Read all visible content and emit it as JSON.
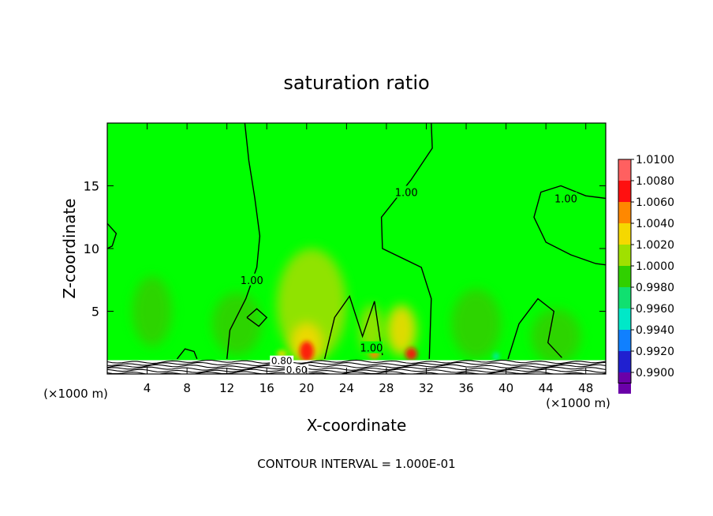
{
  "chart_data": {
    "type": "heatmap",
    "title": "saturation ratio",
    "xlabel": "X-coordinate",
    "ylabel": "Z-coordinate",
    "x_unit_left": "(×1000 m)",
    "x_unit_right": "(×1000 m)",
    "xlim": [
      0,
      50
    ],
    "ylim": [
      0,
      20
    ],
    "x_ticks": [
      4,
      8,
      12,
      16,
      20,
      24,
      28,
      32,
      36,
      40,
      44,
      48
    ],
    "x_tick_labels": [
      "4",
      "8",
      "12",
      "16",
      "20",
      "24",
      "28",
      "32",
      "36",
      "40",
      "44",
      "48"
    ],
    "y_ticks": [
      5,
      10,
      15
    ],
    "y_tick_labels": [
      "5",
      "10",
      "15"
    ],
    "footer": "CONTOUR INTERVAL = 1.000E-01",
    "colorbar": {
      "min": 0.99,
      "max": 1.01,
      "labels": [
        "1.0100",
        "1.0080",
        "1.0060",
        "1.0040",
        "1.0020",
        "1.0000",
        "0.9980",
        "0.9960",
        "0.9940",
        "0.9920",
        "0.9900"
      ],
      "levels": [
        1.009,
        1.007,
        1.005,
        1.003,
        1.001,
        0.999,
        0.997,
        0.995,
        0.993,
        0.991
      ],
      "colors": [
        "#ff6060",
        "#ff1010",
        "#ff8800",
        "#f5d800",
        "#a0e000",
        "#30d000",
        "#10e070",
        "#00e8c8",
        "#1080ff",
        "#2020d0",
        "#6a00a8"
      ]
    },
    "background_color": "#00ff00",
    "features": [
      {
        "kind": "cell",
        "x": 4.5,
        "z": 5.0,
        "value": 0.9988,
        "sx": 2.0,
        "sz": 2.8
      },
      {
        "kind": "cell",
        "x": 13.0,
        "z": 4.0,
        "value": 0.9993,
        "sx": 2.5,
        "sz": 2.5
      },
      {
        "kind": "cell",
        "x": 20.5,
        "z": 5.5,
        "value": 1.0013,
        "sx": 3.5,
        "sz": 4.5
      },
      {
        "kind": "cell",
        "x": 20.0,
        "z": 2.5,
        "value": 1.0032,
        "sx": 1.6,
        "sz": 1.6
      },
      {
        "kind": "cell",
        "x": 20.0,
        "z": 1.8,
        "value": 1.0066,
        "sx": 0.7,
        "sz": 0.8
      },
      {
        "kind": "cell",
        "x": 26.5,
        "z": 3.5,
        "value": 1.0018,
        "sx": 1.2,
        "sz": 2.0
      },
      {
        "kind": "cell",
        "x": 26.8,
        "z": 1.6,
        "value": 1.0055,
        "sx": 0.5,
        "sz": 0.4
      },
      {
        "kind": "cell",
        "x": 29.5,
        "z": 3.5,
        "value": 1.0028,
        "sx": 1.5,
        "sz": 2.0
      },
      {
        "kind": "cell",
        "x": 30.5,
        "z": 1.6,
        "value": 1.0062,
        "sx": 0.6,
        "sz": 0.5
      },
      {
        "kind": "cell",
        "x": 37.0,
        "z": 4.0,
        "value": 0.9984,
        "sx": 2.5,
        "sz": 2.8
      },
      {
        "kind": "cell",
        "x": 45.0,
        "z": 3.0,
        "value": 0.9992,
        "sx": 2.5,
        "sz": 2.2
      },
      {
        "kind": "cell",
        "x": 39.0,
        "z": 1.4,
        "value": 0.9942,
        "sx": 0.3,
        "sz": 0.3
      },
      {
        "kind": "cell",
        "x": 17.5,
        "z": 1.6,
        "value": 1.0035,
        "sx": 0.5,
        "sz": 0.3
      }
    ],
    "contours": [
      {
        "label": "1.00",
        "label_at": [
          14.5,
          7.5
        ],
        "points": [
          [
            13.8,
            20
          ],
          [
            14.2,
            17
          ],
          [
            14.8,
            14
          ],
          [
            15.3,
            11
          ],
          [
            15.0,
            8.5
          ],
          [
            13.9,
            6
          ],
          [
            12.3,
            3.5
          ],
          [
            12.0,
            1.2
          ]
        ]
      },
      {
        "label": "1.00",
        "label_at": [
          30.0,
          14.5
        ],
        "points": [
          [
            32.5,
            20
          ],
          [
            32.6,
            18
          ],
          [
            30.5,
            15.5
          ],
          [
            27.5,
            12.5
          ],
          [
            27.6,
            10
          ],
          [
            31.5,
            8.5
          ],
          [
            32.5,
            6
          ],
          [
            32.3,
            1.2
          ]
        ]
      },
      {
        "label": "1.00",
        "label_at": [
          46.0,
          14.0
        ],
        "points": [
          [
            50,
            14
          ],
          [
            48,
            14.2
          ],
          [
            45.5,
            15
          ],
          [
            43.5,
            14.5
          ],
          [
            42.8,
            12.5
          ],
          [
            44.0,
            10.5
          ],
          [
            46.5,
            9.5
          ],
          [
            49,
            8.8
          ],
          [
            50,
            8.7
          ]
        ]
      },
      {
        "label": "1.00",
        "label_at": [
          26.5,
          2.1
        ],
        "points": [
          [
            21.8,
            1.2
          ],
          [
            22.8,
            4.5
          ],
          [
            24.3,
            6.2
          ],
          [
            25.6,
            3.0
          ],
          [
            26.8,
            5.8
          ],
          [
            27.6,
            1.5
          ]
        ]
      },
      {
        "label": "",
        "label_at": [
          0,
          0
        ],
        "points": [
          [
            0,
            12
          ],
          [
            0.9,
            11.2
          ],
          [
            0.5,
            10.2
          ],
          [
            0,
            10
          ]
        ]
      },
      {
        "label": "",
        "label_at": [
          0,
          0
        ],
        "points": [
          [
            40.2,
            1.2
          ],
          [
            41.3,
            4.0
          ],
          [
            43.2,
            6.0
          ],
          [
            44.8,
            5.0
          ],
          [
            44.2,
            2.5
          ],
          [
            45.6,
            1.3
          ]
        ]
      },
      {
        "label": "",
        "label_at": [
          0,
          0
        ],
        "points": [
          [
            7.0,
            1.2
          ],
          [
            7.8,
            2.0
          ],
          [
            8.7,
            1.8
          ],
          [
            9.0,
            1.2
          ]
        ]
      },
      {
        "label": "",
        "label_at": [
          0,
          0
        ],
        "points": [
          [
            14.0,
            4.5
          ],
          [
            15.0,
            5.2
          ],
          [
            16.0,
            4.5
          ],
          [
            15.2,
            3.8
          ],
          [
            14.0,
            4.5
          ]
        ]
      }
    ],
    "surface_labels": [
      "0.80",
      "0.60"
    ],
    "surface_label_at": [
      [
        17.5,
        0.9
      ],
      [
        19.0,
        0.2
      ]
    ],
    "ground_top_z": 1.1
  }
}
